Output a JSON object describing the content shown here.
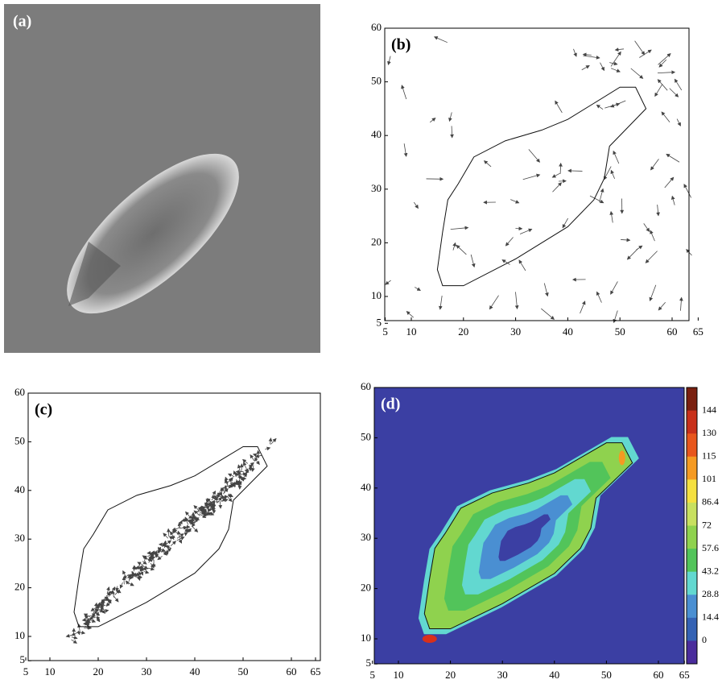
{
  "panels": [
    {
      "label": "(a)"
    },
    {
      "label": "(b)",
      "xticks": [
        5,
        10,
        20,
        30,
        40,
        50,
        60,
        65
      ],
      "yticks": [
        5,
        10,
        20,
        30,
        40,
        50,
        60
      ],
      "xlim": [
        5,
        65
      ],
      "ylim": [
        5,
        60
      ]
    },
    {
      "label": "(c)",
      "xticks": [
        5,
        10,
        20,
        30,
        40,
        50,
        60,
        65
      ],
      "yticks": [
        5,
        10,
        20,
        30,
        40,
        50,
        60
      ],
      "xlim": [
        5,
        65
      ],
      "ylim": [
        5,
        60
      ]
    },
    {
      "label": "(d)",
      "xticks": [
        5,
        10,
        20,
        30,
        40,
        50,
        60,
        65
      ],
      "yticks": [
        5,
        10,
        20,
        30,
        40,
        50,
        60
      ],
      "xlim": [
        5,
        65
      ],
      "ylim": [
        5,
        60
      ],
      "colorbar": {
        "labels": [
          144,
          130,
          115,
          101,
          86.4,
          72,
          57.6,
          43.2,
          28.8,
          14.4,
          0
        ],
        "colors": [
          "#7a2010",
          "#c8301a",
          "#e8561c",
          "#f59a22",
          "#f5e040",
          "#c8e060",
          "#8fd24e",
          "#52c45a",
          "#62d8d0",
          "#4a8fd2",
          "#3462b4",
          "#4a2c9c"
        ]
      }
    }
  ]
}
